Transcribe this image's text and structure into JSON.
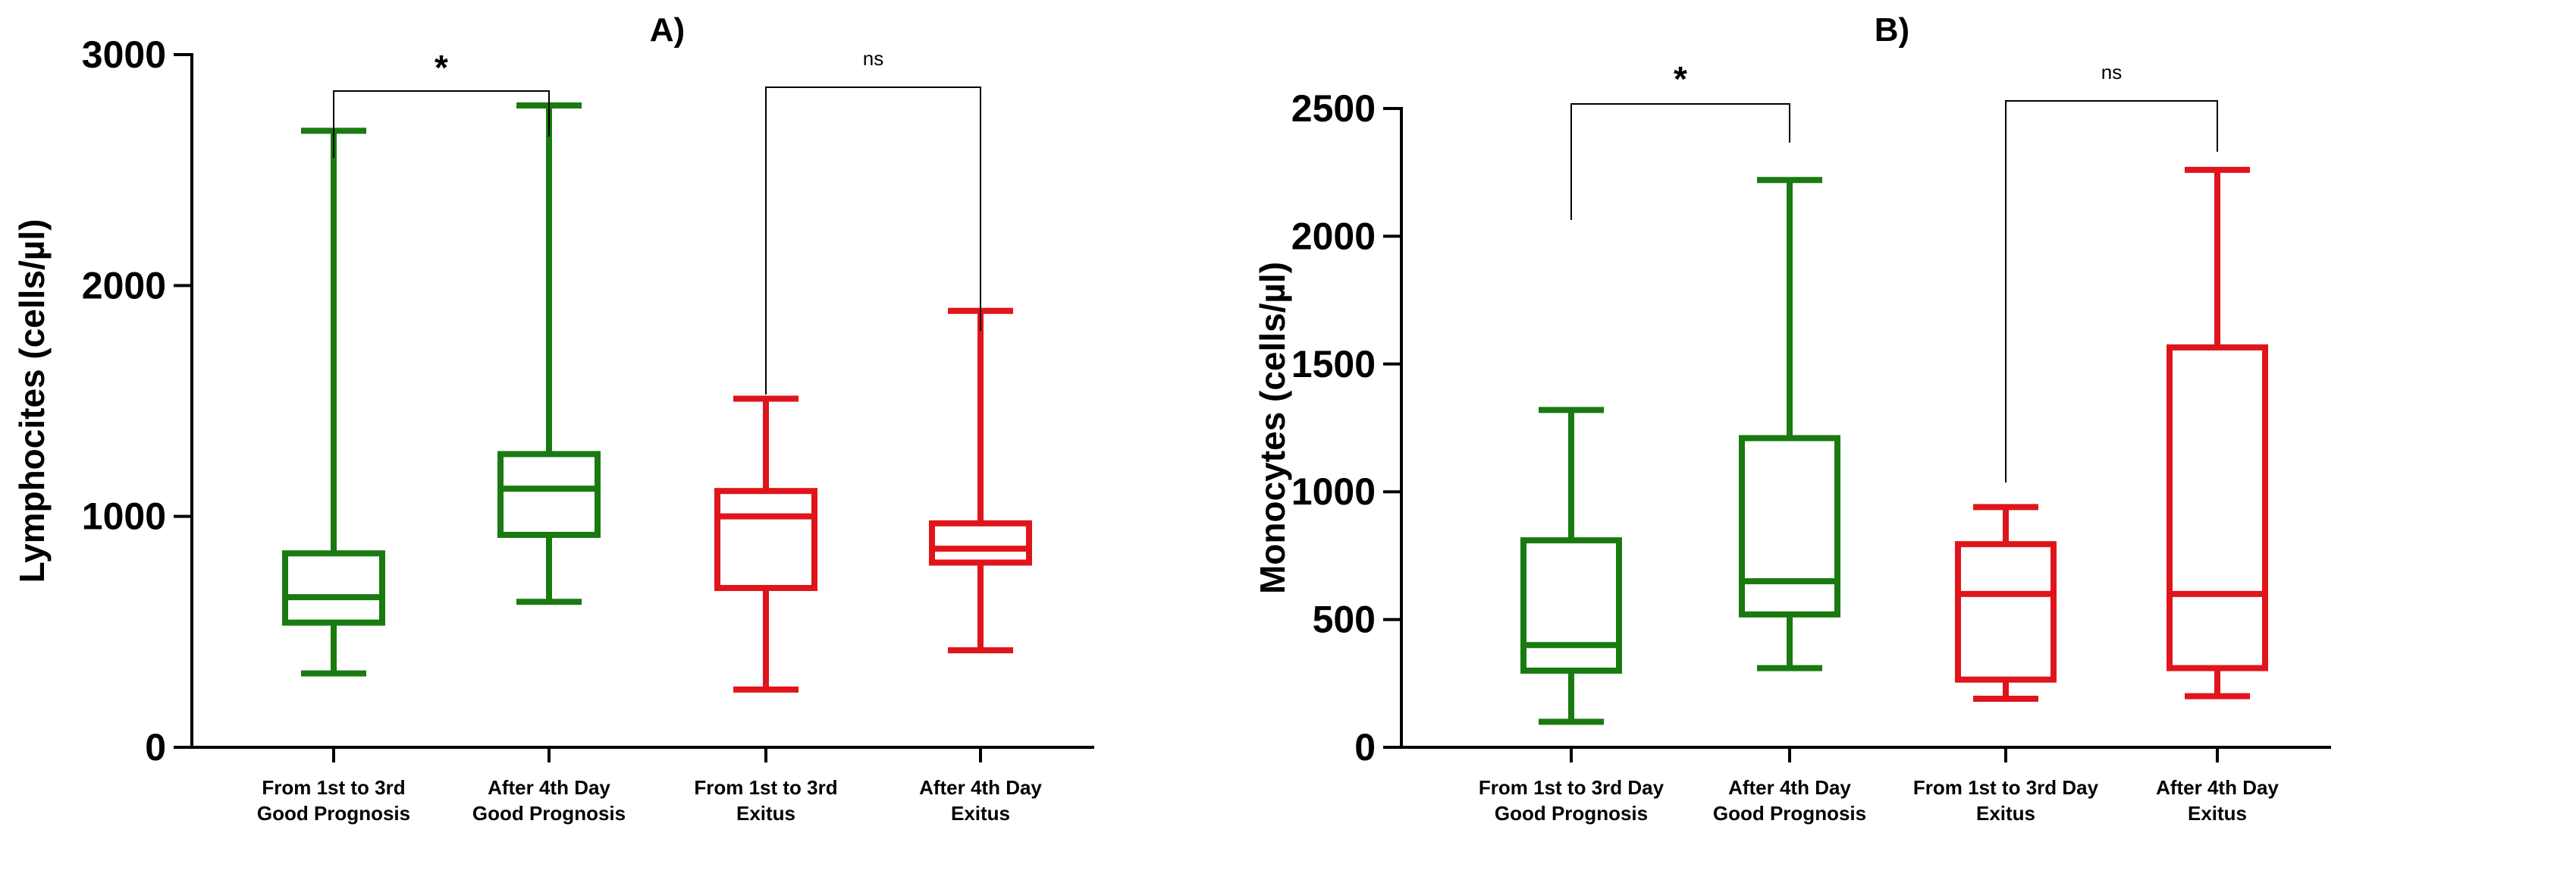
{
  "colors": {
    "good_prognosis": "#1a7a10",
    "exitus": "#e0151b",
    "axis": "#000000"
  },
  "chart_data": [
    {
      "type": "box",
      "title": "A)",
      "ylabel": "Lymphocites (cells/µl)",
      "ylim": [
        0,
        3000
      ],
      "yticks": [
        "0",
        "1000",
        "2000",
        "3000"
      ],
      "categories": [
        [
          "From 1st to 3rd",
          "Good Prognosis"
        ],
        [
          "After 4th Day",
          "Good Prognosis"
        ],
        [
          "From 1st to 3rd",
          "Exitus"
        ],
        [
          "After 4th Day",
          "Exitus"
        ]
      ],
      "boxes": [
        {
          "min": 320,
          "q1": 540,
          "median": 650,
          "q3": 840,
          "max": 2670,
          "color": "#1a7a10"
        },
        {
          "min": 630,
          "q1": 920,
          "median": 1120,
          "q3": 1270,
          "max": 2780,
          "color": "#1a7a10"
        },
        {
          "min": 250,
          "q1": 690,
          "median": 1000,
          "q3": 1110,
          "max": 1510,
          "color": "#e0151b"
        },
        {
          "min": 420,
          "q1": 800,
          "median": 860,
          "q3": 970,
          "max": 1890,
          "color": "#e0151b"
        }
      ],
      "comparisons": [
        {
          "groups": [
            1,
            2
          ],
          "label": "*"
        },
        {
          "groups": [
            3,
            4
          ],
          "label": "ns"
        }
      ]
    },
    {
      "type": "box",
      "title": "B)",
      "ylabel": "Monocytes (cells/µl)",
      "ylim": [
        0,
        2500
      ],
      "yticks": [
        "0",
        "500",
        "1000",
        "1500",
        "2000",
        "2500"
      ],
      "categories": [
        [
          "From 1st to 3rd Day",
          "Good Prognosis"
        ],
        [
          "After 4th Day",
          "Good Prognosis"
        ],
        [
          "From 1st to 3rd Day",
          "Exitus"
        ],
        [
          "After 4th Day",
          "Exitus"
        ]
      ],
      "boxes": [
        {
          "min": 100,
          "q1": 300,
          "median": 400,
          "q3": 810,
          "max": 1320,
          "color": "#1a7a10"
        },
        {
          "min": 310,
          "q1": 520,
          "median": 650,
          "q3": 1210,
          "max": 2220,
          "color": "#1a7a10"
        },
        {
          "min": 190,
          "q1": 265,
          "median": 600,
          "q3": 795,
          "max": 940,
          "color": "#e0151b"
        },
        {
          "min": 200,
          "q1": 310,
          "median": 600,
          "q3": 1565,
          "max": 2260,
          "color": "#e0151b"
        }
      ],
      "comparisons": [
        {
          "groups": [
            1,
            2
          ],
          "label": "*"
        },
        {
          "groups": [
            3,
            4
          ],
          "label": "ns"
        }
      ]
    }
  ]
}
